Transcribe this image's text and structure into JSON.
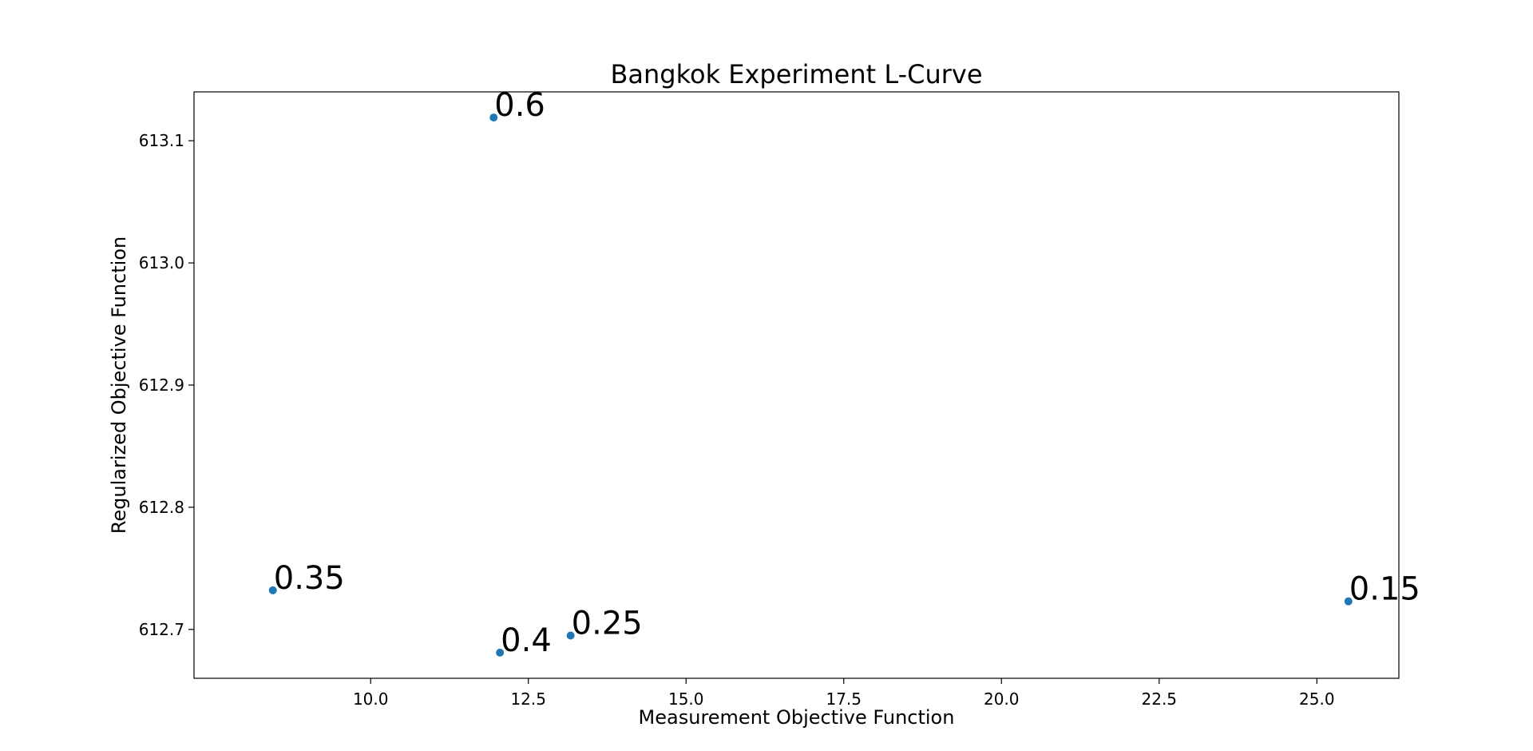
{
  "chart_data": {
    "type": "scatter",
    "title": "Bangkok Experiment L-Curve",
    "xlabel": "Measurement Objective Function",
    "ylabel": "Regularized Objective Function",
    "xlim": [
      7.2,
      26.3
    ],
    "ylim": [
      612.66,
      613.14
    ],
    "xticks": [
      {
        "value": 10.0,
        "label": "10.0"
      },
      {
        "value": 12.5,
        "label": "12.5"
      },
      {
        "value": 15.0,
        "label": "15.0"
      },
      {
        "value": 17.5,
        "label": "17.5"
      },
      {
        "value": 20.0,
        "label": "20.0"
      },
      {
        "value": 22.5,
        "label": "22.5"
      },
      {
        "value": 25.0,
        "label": "25.0"
      }
    ],
    "yticks": [
      {
        "value": 612.7,
        "label": "612.7"
      },
      {
        "value": 612.8,
        "label": "612.8"
      },
      {
        "value": 612.9,
        "label": "612.9"
      },
      {
        "value": 613.0,
        "label": "613.0"
      },
      {
        "value": 613.1,
        "label": "613.1"
      }
    ],
    "grid": false,
    "marker_color": "#1f77b4",
    "points": [
      {
        "x": 11.95,
        "y": 613.119,
        "label": "0.6"
      },
      {
        "x": 8.45,
        "y": 612.732,
        "label": "0.35"
      },
      {
        "x": 12.05,
        "y": 612.681,
        "label": "0.4"
      },
      {
        "x": 13.17,
        "y": 612.695,
        "label": "0.25"
      },
      {
        "x": 25.5,
        "y": 612.723,
        "label": "0.15"
      }
    ]
  }
}
